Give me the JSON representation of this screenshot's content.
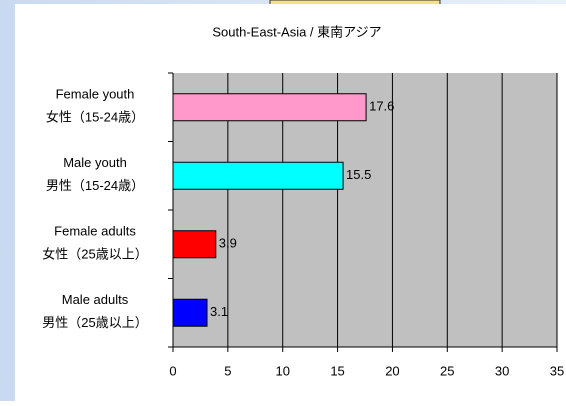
{
  "chart_data": {
    "type": "bar",
    "orientation": "horizontal",
    "title": "South-East-Asia / 東南アジア",
    "categories": [
      [
        "Female youth",
        "女性（15-24歳）"
      ],
      [
        "Male youth",
        "男性（15-24歳）"
      ],
      [
        "Female adults",
        "女性（25歳以上）"
      ],
      [
        "Male adults",
        "男性（25歳以上）"
      ]
    ],
    "values": [
      17.6,
      15.5,
      3.9,
      3.1
    ],
    "colors": [
      "#ff99cc",
      "#00ffff",
      "#ff0000",
      "#0000ff"
    ],
    "xlim": [
      0,
      35
    ],
    "xticks": [
      0,
      5,
      10,
      15,
      20,
      25,
      30,
      35
    ],
    "grid": true
  }
}
